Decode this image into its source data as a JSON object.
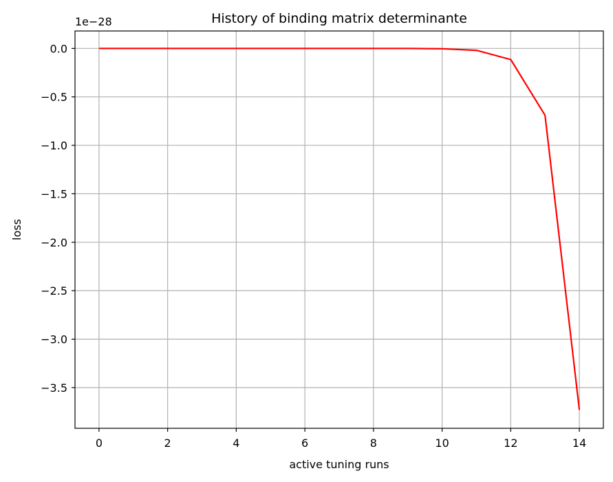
{
  "chart_data": {
    "type": "line",
    "title": "History of binding matrix determinante",
    "xlabel": "active tuning runs",
    "ylabel": "loss",
    "offset_text": "1e−28",
    "grid": true,
    "xlim": [
      -0.7,
      14.7
    ],
    "ylim": [
      -3.92,
      0.18
    ],
    "x_ticks": [
      0,
      2,
      4,
      6,
      8,
      10,
      12,
      14
    ],
    "x_tick_labels": [
      "0",
      "2",
      "4",
      "6",
      "8",
      "10",
      "12",
      "14"
    ],
    "y_ticks": [
      0.0,
      -0.5,
      -1.0,
      -1.5,
      -2.0,
      -2.5,
      -3.0,
      -3.5
    ],
    "y_tick_labels": [
      "0.0",
      "−0.5",
      "−1.0",
      "−1.5",
      "−2.0",
      "−2.5",
      "−3.0",
      "−3.5"
    ],
    "series": [
      {
        "color": "#ff0000",
        "x": [
          0,
          1,
          2,
          3,
          4,
          5,
          6,
          7,
          8,
          9,
          10,
          11,
          12,
          13,
          14
        ],
        "values": [
          0,
          0,
          0,
          0,
          0,
          0,
          0,
          0,
          0,
          0,
          -0.003,
          -0.02,
          -0.115,
          -0.69,
          -3.73
        ]
      }
    ]
  }
}
